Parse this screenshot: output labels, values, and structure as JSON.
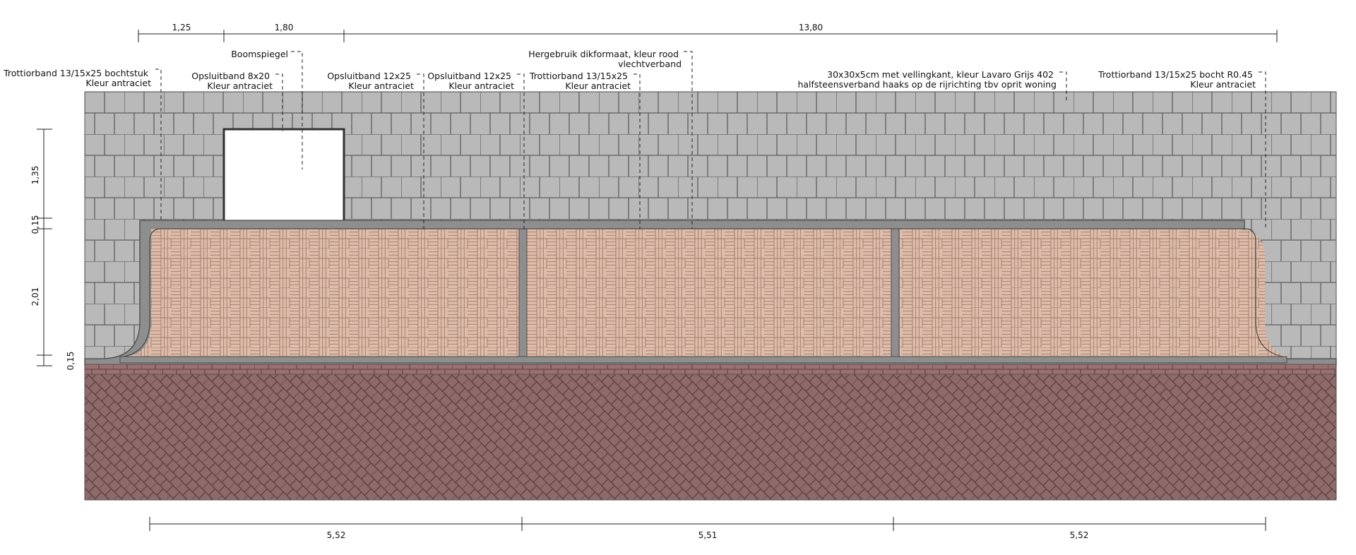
{
  "labels": {
    "trottoir_left_1": "Trottiorband 13/15x25 bochtstuk",
    "trottoir_left_2": "Kleur antraciet",
    "opsluit_8_1": "Opsluitband 8x20",
    "opsluit_8_2": "Kleur antraciet",
    "boomspiegel": "Boomspiegel",
    "opsluit_12a_1": "Opsluitband 12x25",
    "opsluit_12a_2": "Kleur antraciet",
    "opsluit_12b_1": "Opsluitband 12x25",
    "opsluit_12b_2": "Kleur antraciet",
    "trottoir_mid_1": "Trottiorband 13/15x25",
    "trottoir_mid_2": "Kleur antraciet",
    "hergebruik_1": "Hergebruik dikformaat, kleur rood",
    "hergebruik_2": "vlechtverband",
    "tegel_1": "30x30x5cm met vellingkant, kleur Lavaro Grijs 402",
    "tegel_2": "halfsteensverband haaks op de rijrichting tbv oprit woning",
    "trottoir_right_1": "Trottiorband 13/15x25 bocht R0.45",
    "trottoir_right_2": "Kleur antraciet"
  },
  "dimensions": {
    "top": [
      "1,25",
      "1,80",
      "13,80"
    ],
    "bottom": [
      "5,52",
      "5,51",
      "5,52"
    ],
    "left": [
      "1,35",
      "0,15",
      "2,01",
      "0,15"
    ]
  },
  "colors": {
    "grey_tile": "#b9b9b9",
    "grey_joint": "#5f5f5f",
    "curb": "#8e8e8e",
    "curb_edge": "#4a4a4a",
    "brick_light": "#ddbdaa",
    "brick_joint": "#a37a6c",
    "road_brick": "#8e6a6a",
    "road_joint": "#5a3d3d"
  }
}
